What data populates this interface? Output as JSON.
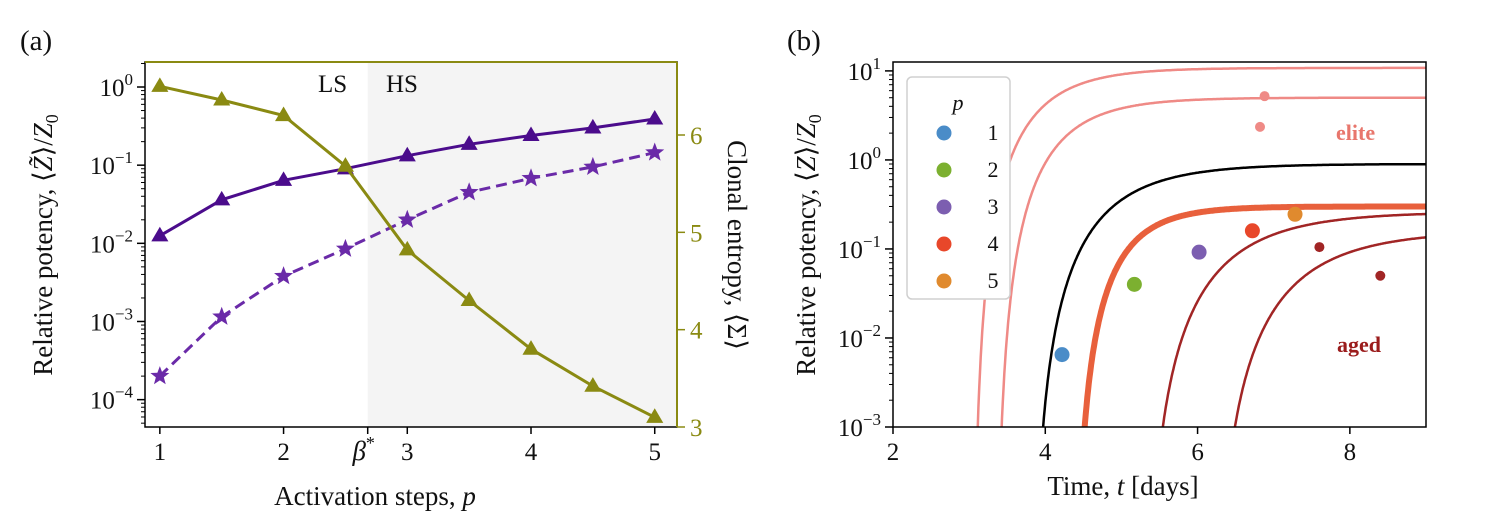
{
  "chart_data": [
    {
      "type": "line",
      "panel_label": "(a)",
      "xlabel": "Activation steps, p",
      "ylabel": "Relative potency, ⟨Z̃⟩/Z₀",
      "ylabel_right": "Clonal entropy, ⟨Σ⟩",
      "x_ticks": [
        "1",
        "2",
        "3",
        "4",
        "5"
      ],
      "beta_label": "β*",
      "beta_star": 2.68,
      "xlim": [
        0.88,
        5.18
      ],
      "ylim_log10": [
        -4.35,
        0.32
      ],
      "y_ticks_exp": [
        -4,
        -3,
        -2,
        -1,
        0
      ],
      "ylim_right": [
        3.0,
        6.75
      ],
      "y_ticks_right": [
        "3",
        "4",
        "5",
        "6"
      ],
      "regions": {
        "left": "LS",
        "right": "HS"
      },
      "series": [
        {
          "name": "potency (solid)",
          "axis": "left",
          "marker": "triangle",
          "color": "#4b0c8c",
          "dash": "solid",
          "x": [
            1,
            1.5,
            2,
            2.5,
            3,
            3.5,
            4,
            4.5,
            5
          ],
          "y": [
            0.0125,
            0.036,
            0.064,
            0.09,
            0.132,
            0.185,
            0.24,
            0.3,
            0.39
          ]
        },
        {
          "name": "potency (dashed)",
          "axis": "left",
          "marker": "star",
          "color": "#6a2aa8",
          "dash": "dashed",
          "x": [
            1,
            1.5,
            2,
            2.5,
            3,
            3.5,
            4,
            4.5,
            5
          ],
          "y": [
            0.0002,
            0.00115,
            0.0038,
            0.0085,
            0.02,
            0.045,
            0.068,
            0.095,
            0.145
          ]
        },
        {
          "name": "clonal entropy",
          "axis": "right",
          "marker": "triangle",
          "color": "#8a8a12",
          "dash": "solid",
          "x": [
            1,
            1.5,
            2,
            2.5,
            3,
            3.5,
            4,
            4.5,
            5
          ],
          "y": [
            6.5,
            6.36,
            6.2,
            5.68,
            4.82,
            4.3,
            3.8,
            3.42,
            3.1
          ]
        }
      ]
    },
    {
      "type": "line",
      "panel_label": "(b)",
      "xlabel": "Time, t [days]",
      "ylabel": "Relative potency, ⟨Z⟩/Z₀",
      "x_ticks": [
        "2",
        "4",
        "6",
        "8"
      ],
      "xlim": [
        2,
        9
      ],
      "ylim_log10": [
        -3,
        1.1
      ],
      "y_ticks_exp": [
        -3,
        -2,
        -1,
        0,
        1
      ],
      "legend_title": "p",
      "legend_entries": [
        {
          "label": "1",
          "color": "#4a8cc8"
        },
        {
          "label": "2",
          "color": "#7cb030"
        },
        {
          "label": "3",
          "color": "#7c5eb0"
        },
        {
          "label": "4",
          "color": "#e8472a"
        },
        {
          "label": "5",
          "color": "#e08a2e"
        }
      ],
      "annotations": [
        {
          "text": "elite",
          "color": "#e8766c"
        },
        {
          "text": "aged",
          "color": "#9b1c1c"
        }
      ],
      "curves": [
        {
          "name": "elite upper",
          "color": "#ef8a86",
          "width": 2.5,
          "t0": 3.05,
          "tau": 0.61,
          "k": 10.8,
          "dot": {
            "x": 6.88,
            "y": 5.2
          }
        },
        {
          "name": "elite lower",
          "color": "#ef8a86",
          "width": 2.5,
          "t0": 3.35,
          "tau": 0.61,
          "k": 5.0,
          "dot": {
            "x": 6.82,
            "y": 2.35
          }
        },
        {
          "name": "reference",
          "color": "#000000",
          "width": 2.5,
          "t0": 3.82,
          "tau": 0.75,
          "k": 0.9,
          "points": [
            {
              "x": 4.22,
              "y": 0.0065,
              "color": "#4a8cc8"
            },
            {
              "x": 5.17,
              "y": 0.04,
              "color": "#7cb030"
            },
            {
              "x": 6.02,
              "y": 0.092,
              "color": "#7c5eb0"
            }
          ]
        },
        {
          "name": "optimal (thick)",
          "color": "#e8603c",
          "width": 6,
          "t0": 4.38,
          "tau": 0.5,
          "k": 0.3,
          "points": [
            {
              "x": 6.72,
              "y": 0.16,
              "color": "#e8472a"
            },
            {
              "x": 7.28,
              "y": 0.245,
              "color": "#e08a2e"
            }
          ]
        },
        {
          "name": "aged upper",
          "color": "#a12525",
          "width": 2.5,
          "t0": 5.3,
          "tau": 0.85,
          "k": 0.26,
          "dot": {
            "x": 7.6,
            "y": 0.105
          }
        },
        {
          "name": "aged lower",
          "color": "#a12525",
          "width": 2.5,
          "t0": 6.2,
          "tau": 0.88,
          "k": 0.16,
          "dot": {
            "x": 8.4,
            "y": 0.05
          }
        }
      ]
    }
  ]
}
